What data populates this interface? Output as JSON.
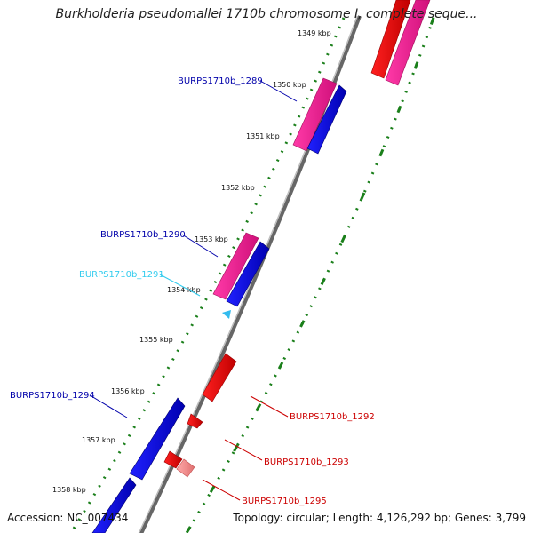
{
  "title": "Burkholderia pseudomallei 1710b chromosome I, complete seque...",
  "footer": {
    "accession": "Accession: NC_007434",
    "summary": "Topology: circular; Length: 4,126,292 bp; Genes: 3,799"
  },
  "colors": {
    "forward_gene": "#0000ee",
    "reverse_gene": "#ee0000",
    "cds_pink": "#ff1493",
    "pseudo_light": "#f08080",
    "tick_green": "#1a7f1a",
    "backbone": "#777777",
    "label_blue": "#0000aa",
    "label_cyan": "#33ccee",
    "label_red": "#cc0000"
  },
  "ruler_ticks": [
    "1349 kbp",
    "1350 kbp",
    "1351 kbp",
    "1352 kbp",
    "1353 kbp",
    "1354 kbp",
    "1355 kbp",
    "1356 kbp",
    "1357 kbp",
    "1358 kbp"
  ],
  "gene_labels": [
    {
      "name": "BURPS1710b_1289",
      "color": "label_blue"
    },
    {
      "name": "BURPS1710b_1290",
      "color": "label_blue"
    },
    {
      "name": "BURPS1710b_1291",
      "color": "label_cyan"
    },
    {
      "name": "BURPS1710b_1294",
      "color": "label_blue"
    },
    {
      "name": "BURPS1710b_1292",
      "color": "label_red"
    },
    {
      "name": "BURPS1710b_1293",
      "color": "label_red"
    },
    {
      "name": "BURPS1710b_1295",
      "color": "label_red"
    }
  ]
}
